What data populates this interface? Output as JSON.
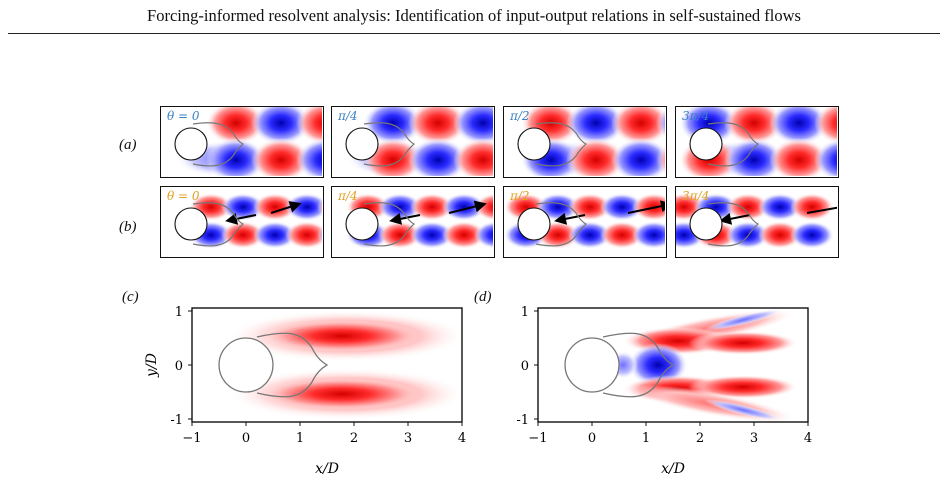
{
  "header": {
    "title": "Forcing-informed resolvent analysis: Identification of input-output relations in self-sustained flows"
  },
  "figure": {
    "row_a": {
      "label": "(a)",
      "label_color": "#3a82c4",
      "panels": [
        "θ = 0",
        "π/4",
        "π/2",
        "3π/4"
      ]
    },
    "row_b": {
      "label": "(b)",
      "label_color": "#e0a020",
      "panels": [
        "θ = 0",
        "π/4",
        "π/2",
        "3π/4"
      ]
    },
    "panel_c": {
      "label": "(c)",
      "xlabel": "x/D",
      "ylabel": "y/D",
      "xticks": [
        "−1",
        "0",
        "1",
        "2",
        "3",
        "4"
      ],
      "yticks": [
        "1",
        "0",
        "-1"
      ]
    },
    "panel_d": {
      "label": "(d)",
      "xlabel": "x/D",
      "xticks": [
        "−1",
        "0",
        "1",
        "2",
        "3",
        "4"
      ],
      "yticks": [
        "1",
        "0",
        "-1"
      ]
    },
    "colors": {
      "red": "#e01010",
      "blue": "#1010d8",
      "outline": "#777777"
    }
  }
}
